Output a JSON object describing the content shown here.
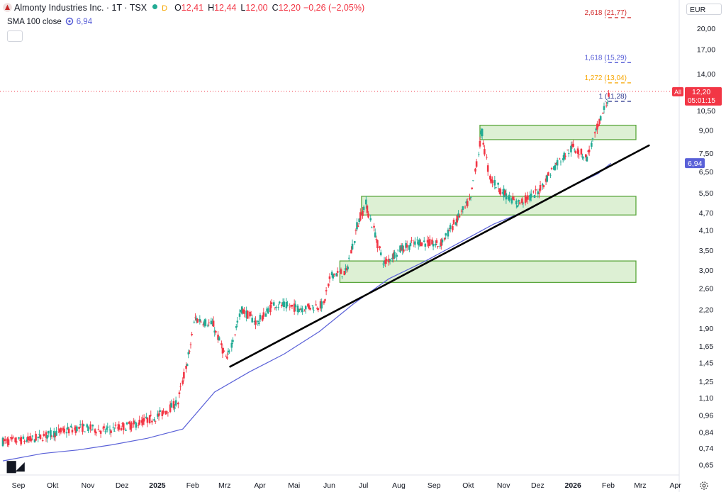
{
  "header": {
    "symbol_title": "Almonty Industries Inc. · 1T · TSX",
    "delay_flag": "D",
    "ohlc": [
      {
        "label": "O",
        "value": "12,41"
      },
      {
        "label": "H",
        "value": "12,44"
      },
      {
        "label": "L",
        "value": "12,00"
      },
      {
        "label": "C",
        "value": "12,20"
      },
      {
        "label": "",
        "value": "−0,26 (−2,05%)"
      }
    ]
  },
  "indicator": {
    "label": "SMA 100 close",
    "value": "6,94"
  },
  "currency": "EUR",
  "price_tag": {
    "scale": "All",
    "value": "12,20",
    "countdown": "05:01:15"
  },
  "sma_tag": "6,94",
  "colors": {
    "up": "#22ab94",
    "down": "#f23645",
    "sma": "#5a61d8",
    "zone_fill": "#cfeac2",
    "zone_stroke": "#5aa63c",
    "fib_top": "#e8b08a",
    "fib_1618": "#d9d4d4",
    "fib_1272": "#dcd6d6",
    "fib_1": "#d4d6f4"
  },
  "chart_data": {
    "type": "line",
    "y_scale": "log",
    "ylim": [
      0.62,
      25
    ],
    "y_ticks": [
      "20,00",
      "17,00",
      "14,00",
      "10,50",
      "9,00",
      "7,50",
      "6,50",
      "5,50",
      "4,70",
      "4,10",
      "3,50",
      "3,00",
      "2,60",
      "2,20",
      "1,90",
      "1,65",
      "1,45",
      "1,25",
      "1,10",
      "0,96",
      "0,84",
      "0,74",
      "0,65"
    ],
    "y_tick_values": [
      20.0,
      17.0,
      14.0,
      10.5,
      9.0,
      7.5,
      6.5,
      5.5,
      4.7,
      4.1,
      3.5,
      3.0,
      2.6,
      2.2,
      1.9,
      1.65,
      1.45,
      1.25,
      1.1,
      0.96,
      0.84,
      0.74,
      0.65
    ],
    "x_labels": [
      "Sep",
      "Okt",
      "Nov",
      "Dez",
      "2025",
      "Feb",
      "Mrz",
      "Apr",
      "Mai",
      "Jun",
      "Jul",
      "Aug",
      "Sep",
      "Okt",
      "Nov",
      "Dez",
      "2026",
      "Feb",
      "Mrz",
      "Apr"
    ],
    "x_bold": [
      "2025",
      "2026"
    ],
    "x_range": [
      "2024-08-27",
      "2026-04-13"
    ],
    "price_path": [
      [
        "2024-08-27",
        0.78
      ],
      [
        "2024-09-20",
        0.79
      ],
      [
        "2024-10-15",
        0.84
      ],
      [
        "2024-11-05",
        0.87
      ],
      [
        "2024-11-25",
        0.85
      ],
      [
        "2024-12-20",
        0.89
      ],
      [
        "2025-01-10",
        0.95
      ],
      [
        "2025-01-28",
        1.06
      ],
      [
        "2025-02-07",
        1.55
      ],
      [
        "2025-02-12",
        2.05
      ],
      [
        "2025-02-28",
        1.95
      ],
      [
        "2025-03-12",
        1.48
      ],
      [
        "2025-03-25",
        2.2
      ],
      [
        "2025-04-08",
        1.98
      ],
      [
        "2025-04-22",
        2.3
      ],
      [
        "2025-05-15",
        2.22
      ],
      [
        "2025-06-05",
        2.28
      ],
      [
        "2025-06-12",
        2.9
      ],
      [
        "2025-06-25",
        2.95
      ],
      [
        "2025-07-05",
        4.3
      ],
      [
        "2025-07-12",
        5.05
      ],
      [
        "2025-07-20",
        4.0
      ],
      [
        "2025-07-28",
        3.15
      ],
      [
        "2025-08-12",
        3.55
      ],
      [
        "2025-08-28",
        3.75
      ],
      [
        "2025-09-15",
        3.65
      ],
      [
        "2025-09-30",
        4.45
      ],
      [
        "2025-10-12",
        5.2
      ],
      [
        "2025-10-22",
        8.8
      ],
      [
        "2025-10-29",
        6.2
      ],
      [
        "2025-11-10",
        5.5
      ],
      [
        "2025-11-22",
        5.05
      ],
      [
        "2025-12-10",
        5.5
      ],
      [
        "2025-12-25",
        6.8
      ],
      [
        "2026-01-10",
        7.9
      ],
      [
        "2026-01-22",
        7.25
      ],
      [
        "2026-02-01",
        9.2
      ],
      [
        "2026-02-12",
        12.2
      ]
    ],
    "series": [
      {
        "values": [
          [
            "2024-08-27",
            0.67
          ],
          [
            "2024-10-01",
            0.71
          ],
          [
            "2024-11-01",
            0.73
          ],
          [
            "2024-12-01",
            0.76
          ],
          [
            "2025-01-01",
            0.8
          ],
          [
            "2025-02-01",
            0.86
          ],
          [
            "2025-03-01",
            1.15
          ],
          [
            "2025-04-01",
            1.35
          ],
          [
            "2025-05-01",
            1.55
          ],
          [
            "2025-06-01",
            1.85
          ],
          [
            "2025-07-01",
            2.3
          ],
          [
            "2025-08-01",
            2.8
          ],
          [
            "2025-09-01",
            3.2
          ],
          [
            "2025-10-01",
            3.7
          ],
          [
            "2025-11-01",
            4.3
          ],
          [
            "2025-12-01",
            4.8
          ],
          [
            "2026-01-01",
            5.6
          ],
          [
            "2026-02-01",
            6.4
          ],
          [
            "2026-02-12",
            6.94
          ]
        ]
      }
    ],
    "trendline": [
      [
        "2025-03-14",
        1.4
      ],
      [
        "2026-03-18",
        8.0
      ]
    ],
    "zones": [
      {
        "from": "2025-06-19",
        "to": "2026-03-06",
        "low": 2.72,
        "high": 3.22
      },
      {
        "from": "2025-07-08",
        "to": "2026-03-06",
        "low": 4.62,
        "high": 5.35
      },
      {
        "from": "2025-10-20",
        "to": "2026-03-06",
        "low": 8.35,
        "high": 9.35
      }
    ],
    "fib_levels": [
      {
        "label": "1 (11,28)",
        "value": 11.28,
        "color": "#2f3a8f"
      },
      {
        "label": "1,272 (13,04)",
        "value": 13.04,
        "color": "#f7a600"
      },
      {
        "label": "1,618 (15,29)",
        "value": 15.29,
        "color": "#5a61d8"
      },
      {
        "label": "2,618 (21,77)",
        "value": 21.77,
        "color": "#d32f2f"
      }
    ],
    "fib_range": [
      "2025-11-22",
      "2026-02-06"
    ],
    "last_price": 12.2
  }
}
